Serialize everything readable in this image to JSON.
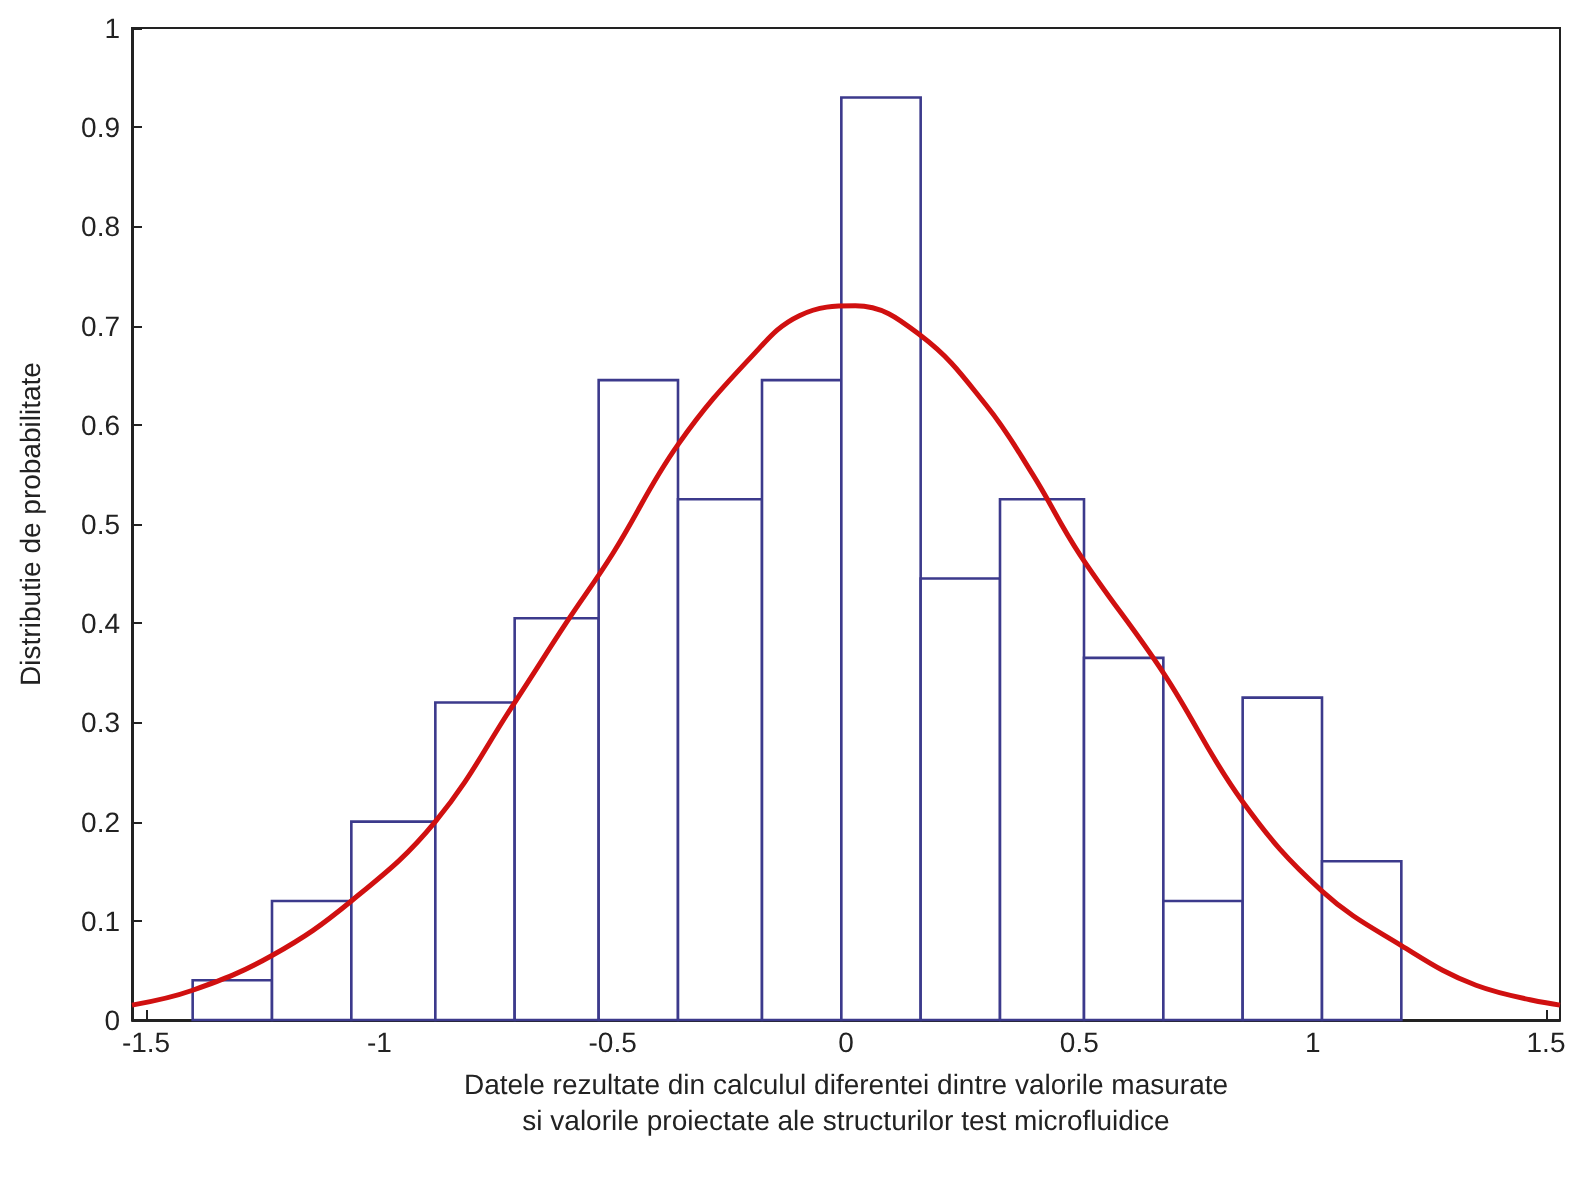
{
  "chart_data": {
    "type": "histogram",
    "xlabel": "Datele rezultate din calculul diferentei dintre valorile masurate\nsi valorile proiectate ale structurilor test microfluidice",
    "ylabel": "Distributie de probabilitate",
    "xlim": [
      -1.53,
      1.53
    ],
    "xticks": [
      -1.5,
      -1,
      -0.5,
      0,
      0.5,
      1,
      1.5
    ],
    "ylim": [
      0,
      1
    ],
    "yticks": [
      0,
      0.1,
      0.2,
      0.3,
      0.4,
      0.5,
      0.6,
      0.7,
      0.8,
      0.9,
      1
    ],
    "series": [
      {
        "color": "#3c3a8c",
        "bins": [
          -1.4,
          -1.23,
          -1.06,
          -0.88,
          -0.71,
          -0.53,
          -0.36,
          -0.18,
          -0.01,
          0.16,
          0.33,
          0.51,
          0.68,
          0.85,
          1.02,
          1.19
        ],
        "values": [
          0.04,
          0.12,
          0.2,
          0.32,
          0.405,
          0.645,
          0.525,
          0.645,
          0.93,
          0.445,
          0.525,
          0.365,
          0.12,
          0.325,
          0.16
        ]
      },
      {
        "type": "line",
        "color": "#d01010",
        "x": [
          -1.53,
          -1.4,
          -1.23,
          -1.06,
          -0.88,
          -0.71,
          -0.6,
          -0.5,
          -0.36,
          -0.2,
          -0.1,
          0.02,
          0.16,
          0.3,
          0.4,
          0.5,
          0.68,
          0.85,
          1.02,
          1.19,
          1.35,
          1.53
        ],
        "values": [
          0.015,
          0.03,
          0.065,
          0.12,
          0.2,
          0.32,
          0.4,
          0.47,
          0.58,
          0.67,
          0.71,
          0.72,
          0.69,
          0.62,
          0.55,
          0.47,
          0.35,
          0.22,
          0.13,
          0.075,
          0.035,
          0.015
        ]
      }
    ]
  }
}
